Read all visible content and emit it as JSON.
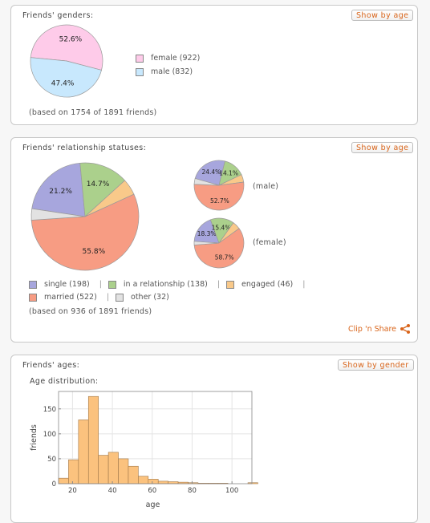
{
  "colors": {
    "female": "#fecbe9",
    "male": "#c8e8fd",
    "single": "#a7a6dd",
    "relationship": "#abd08c",
    "engaged": "#f9c98a",
    "married": "#f79c83",
    "other": "#e2e2e2",
    "bar": "#fbc27e",
    "accent": "#d9651b"
  },
  "genders": {
    "title": "Friends' genders:",
    "button": "Show by age",
    "legend": [
      "female (922)",
      "male (832)"
    ],
    "note": "(based on 1754 of 1891 friends)"
  },
  "relationships": {
    "title": "Friends' relationship statuses:",
    "button": "Show by age",
    "male_label": "(male)",
    "female_label": "(female)",
    "legend_row1": [
      "single (198)",
      "in a relationship (138)",
      "engaged (46)"
    ],
    "legend_row2": [
      "married (522)",
      "other (32)"
    ],
    "separator": "|",
    "note": "(based on 936 of 1891 friends)",
    "clip_share": "Clip 'n Share",
    "share_icon": "share-icon"
  },
  "ages": {
    "title": "Friends' ages:",
    "button": "Show by gender",
    "subtitle": "Age distribution:"
  },
  "chart_data": [
    {
      "type": "pie",
      "title": "Friends' genders:",
      "categories": [
        "female",
        "male"
      ],
      "values": [
        922,
        832
      ],
      "labels": [
        "52.6%",
        "47.4%"
      ]
    },
    {
      "type": "pie",
      "title": "Friends' relationship statuses:",
      "categories": [
        "single",
        "in a relationship",
        "engaged",
        "married",
        "other"
      ],
      "values": [
        198,
        138,
        46,
        522,
        32
      ],
      "labels": [
        "21.2%",
        "14.7%",
        "",
        "55.8%",
        ""
      ]
    },
    {
      "type": "pie",
      "title": "(male)",
      "categories": [
        "single",
        "in a relationship",
        "engaged",
        "married",
        "other"
      ],
      "values": [
        24.4,
        14.1,
        5.0,
        52.7,
        3.8
      ],
      "labels": [
        "24.4%",
        "14.1%",
        "",
        "52.7%",
        ""
      ]
    },
    {
      "type": "pie",
      "title": "(female)",
      "categories": [
        "single",
        "in a relationship",
        "engaged",
        "married",
        "other"
      ],
      "values": [
        18.3,
        15.4,
        5.2,
        58.7,
        2.4
      ],
      "labels": [
        "18.3%",
        "15.4%",
        "",
        "58.7%",
        ""
      ]
    },
    {
      "type": "bar",
      "title": "Age distribution:",
      "xlabel": "age",
      "ylabel": "friends",
      "xlim": [
        13,
        110
      ],
      "ylim": [
        0,
        185
      ],
      "xticks": [
        20,
        40,
        60,
        80,
        100
      ],
      "yticks": [
        0,
        50,
        100,
        150
      ],
      "bin_width": 5,
      "bin_starts": [
        13,
        18,
        23,
        28,
        33,
        38,
        43,
        48,
        53,
        58,
        63,
        68,
        73,
        78,
        83,
        88,
        93,
        98,
        103,
        108
      ],
      "values": [
        11,
        48,
        128,
        175,
        57,
        63,
        50,
        35,
        15,
        9,
        5,
        4,
        3,
        2,
        1,
        1,
        1,
        0,
        0,
        2
      ]
    }
  ]
}
